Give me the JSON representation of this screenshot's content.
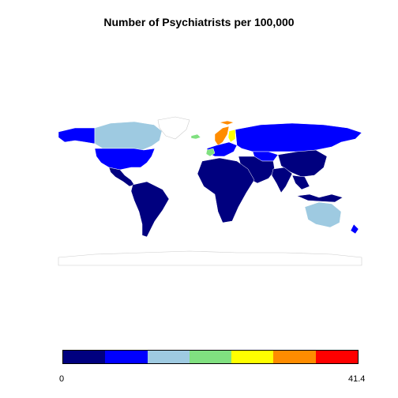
{
  "title": "Number of Psychiatrists per 100,000",
  "legend": {
    "min_label": "0",
    "max_label": "41.4",
    "min": 0,
    "max": 41.4,
    "colors": [
      "#00007f",
      "#0000ff",
      "#9ecae1",
      "#80e080",
      "#ffff00",
      "#ff8c00",
      "#ff0000"
    ]
  },
  "regions": [
    {
      "name": "Canada",
      "color": "#9ecae1"
    },
    {
      "name": "Alaska",
      "color": "#0000ff"
    },
    {
      "name": "Greenland",
      "color": "#ffffff"
    },
    {
      "name": "United States",
      "color": "#0000ff"
    },
    {
      "name": "Central America",
      "color": "#00007f"
    },
    {
      "name": "South America",
      "color": "#00007f"
    },
    {
      "name": "Africa",
      "color": "#00007f"
    },
    {
      "name": "Middle East",
      "color": "#00007f"
    },
    {
      "name": "Russia",
      "color": "#0000ff"
    },
    {
      "name": "Kazakhstan",
      "color": "#0000ff"
    },
    {
      "name": "China",
      "color": "#00007f"
    },
    {
      "name": "India",
      "color": "#00007f"
    },
    {
      "name": "Southeast Asia",
      "color": "#00007f"
    },
    {
      "name": "Indonesia",
      "color": "#00007f"
    },
    {
      "name": "Australia",
      "color": "#9ecae1"
    },
    {
      "name": "New Zealand",
      "color": "#0000ff"
    },
    {
      "name": "Western Europe",
      "color": "#0000ff"
    },
    {
      "name": "France",
      "color": "#80e080"
    },
    {
      "name": "Scandinavia",
      "color": "#ff8c00"
    },
    {
      "name": "Finland",
      "color": "#ffff00"
    },
    {
      "name": "Iceland",
      "color": "#80e080"
    },
    {
      "name": "Antarctica",
      "color": "#ffffff"
    }
  ]
}
